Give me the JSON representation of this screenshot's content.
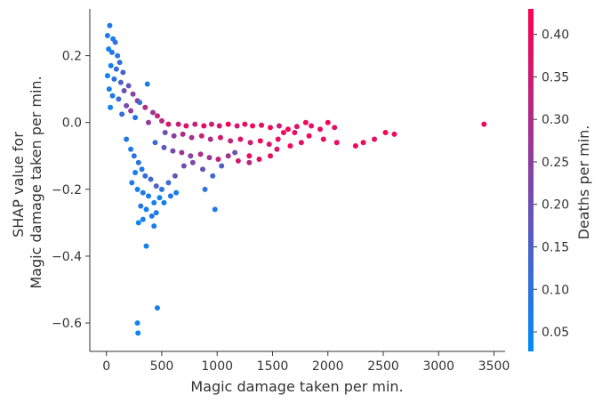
{
  "chart_data": {
    "type": "scatter",
    "title": "",
    "xlabel": "Magic damage taken per min.",
    "ylabel": [
      "SHAP value for",
      "Magic damage taken per min."
    ],
    "xlim": [
      -150,
      3600
    ],
    "ylim": [
      -0.685,
      0.34
    ],
    "xticks": [
      0,
      500,
      1000,
      1500,
      2000,
      2500,
      3000,
      3500
    ],
    "yticks": [
      0.2,
      0.0,
      -0.2,
      -0.4,
      -0.6
    ],
    "ytick_labels": [
      "0.2",
      "0.0",
      "−0.2",
      "−0.4",
      "−0.6"
    ],
    "grid": false,
    "colorbar": {
      "label": "Deaths per min.",
      "range": [
        0.027,
        0.43
      ],
      "ticks": [
        0.05,
        0.1,
        0.15,
        0.2,
        0.25,
        0.3,
        0.35,
        0.4
      ],
      "tick_labels": [
        "0.05",
        "0.10",
        "0.15",
        "0.20",
        "0.25",
        "0.30",
        "0.35",
        "0.40"
      ],
      "colors": [
        "#008bfb",
        "#ff0052"
      ]
    },
    "points": [
      [
        30,
        0.29,
        0.08
      ],
      [
        10,
        0.26,
        0.07
      ],
      [
        60,
        0.25,
        0.06
      ],
      [
        80,
        0.24,
        0.1
      ],
      [
        20,
        0.22,
        0.05
      ],
      [
        50,
        0.21,
        0.08
      ],
      [
        100,
        0.2,
        0.09
      ],
      [
        120,
        0.18,
        0.11
      ],
      [
        40,
        0.17,
        0.06
      ],
      [
        90,
        0.16,
        0.12
      ],
      [
        150,
        0.15,
        0.14
      ],
      [
        10,
        0.14,
        0.05
      ],
      [
        70,
        0.13,
        0.09
      ],
      [
        130,
        0.12,
        0.15
      ],
      [
        200,
        0.11,
        0.18
      ],
      [
        370,
        0.115,
        0.07
      ],
      [
        25,
        0.1,
        0.06
      ],
      [
        160,
        0.095,
        0.2
      ],
      [
        240,
        0.085,
        0.24
      ],
      [
        55,
        0.08,
        0.07
      ],
      [
        110,
        0.07,
        0.12
      ],
      [
        280,
        0.065,
        0.27
      ],
      [
        300,
        0.06,
        0.1
      ],
      [
        180,
        0.05,
        0.22
      ],
      [
        35,
        0.045,
        0.05
      ],
      [
        350,
        0.045,
        0.3
      ],
      [
        220,
        0.035,
        0.26
      ],
      [
        420,
        0.03,
        0.28
      ],
      [
        140,
        0.025,
        0.11
      ],
      [
        460,
        0.02,
        0.33
      ],
      [
        260,
        0.015,
        0.09
      ],
      [
        500,
        0.005,
        0.31
      ],
      [
        380,
        0.0,
        0.25
      ],
      [
        560,
        -0.005,
        0.36
      ],
      [
        650,
        -0.005,
        0.34
      ],
      [
        720,
        -0.01,
        0.38
      ],
      [
        800,
        -0.005,
        0.33
      ],
      [
        880,
        -0.01,
        0.4
      ],
      [
        950,
        -0.005,
        0.35
      ],
      [
        1020,
        -0.01,
        0.37
      ],
      [
        1100,
        -0.005,
        0.42
      ],
      [
        1180,
        -0.01,
        0.36
      ],
      [
        1250,
        -0.005,
        0.39
      ],
      [
        1320,
        -0.01,
        0.41
      ],
      [
        1400,
        -0.008,
        0.38
      ],
      [
        1480,
        -0.015,
        0.4
      ],
      [
        1560,
        -0.01,
        0.35
      ],
      [
        1640,
        -0.02,
        0.42
      ],
      [
        1720,
        -0.012,
        0.37
      ],
      [
        1800,
        0.0,
        0.41
      ],
      [
        1850,
        -0.01,
        0.39
      ],
      [
        1930,
        -0.02,
        0.4
      ],
      [
        2000,
        0.0,
        0.42
      ],
      [
        2060,
        -0.015,
        0.38
      ],
      [
        2250,
        -0.07,
        0.4
      ],
      [
        2320,
        -0.06,
        0.41
      ],
      [
        2420,
        -0.05,
        0.39
      ],
      [
        2520,
        -0.03,
        0.42
      ],
      [
        2600,
        -0.035,
        0.4
      ],
      [
        3410,
        -0.005,
        0.41
      ],
      [
        530,
        -0.03,
        0.2
      ],
      [
        610,
        -0.04,
        0.25
      ],
      [
        690,
        -0.035,
        0.3
      ],
      [
        770,
        -0.045,
        0.28
      ],
      [
        860,
        -0.04,
        0.33
      ],
      [
        940,
        -0.05,
        0.3
      ],
      [
        1030,
        -0.045,
        0.36
      ],
      [
        1120,
        -0.055,
        0.32
      ],
      [
        1210,
        -0.05,
        0.38
      ],
      [
        1300,
        -0.06,
        0.35
      ],
      [
        1390,
        -0.055,
        0.4
      ],
      [
        1470,
        -0.065,
        0.37
      ],
      [
        1550,
        -0.05,
        0.39
      ],
      [
        1660,
        -0.07,
        0.41
      ],
      [
        1760,
        -0.06,
        0.38
      ],
      [
        440,
        -0.06,
        0.12
      ],
      [
        520,
        -0.075,
        0.17
      ],
      [
        600,
        -0.085,
        0.22
      ],
      [
        680,
        -0.09,
        0.27
      ],
      [
        760,
        -0.1,
        0.24
      ],
      [
        850,
        -0.095,
        0.3
      ],
      [
        930,
        -0.105,
        0.26
      ],
      [
        1010,
        -0.11,
        0.33
      ],
      [
        1100,
        -0.1,
        0.29
      ],
      [
        1190,
        -0.115,
        0.36
      ],
      [
        1290,
        -0.12,
        0.32
      ],
      [
        1380,
        -0.11,
        0.38
      ],
      [
        1290,
        -0.1,
        0.4
      ],
      [
        2080,
        -0.06,
        0.4
      ],
      [
        1960,
        -0.05,
        0.39
      ],
      [
        180,
        -0.05,
        0.08
      ],
      [
        220,
        -0.08,
        0.07
      ],
      [
        250,
        -0.1,
        0.1
      ],
      [
        290,
        -0.12,
        0.09
      ],
      [
        320,
        -0.14,
        0.08
      ],
      [
        260,
        -0.15,
        0.06
      ],
      [
        350,
        -0.16,
        0.11
      ],
      [
        230,
        -0.18,
        0.07
      ],
      [
        400,
        -0.17,
        0.13
      ],
      [
        280,
        -0.2,
        0.06
      ],
      [
        450,
        -0.19,
        0.15
      ],
      [
        330,
        -0.21,
        0.08
      ],
      [
        500,
        -0.2,
        0.09
      ],
      [
        560,
        -0.18,
        0.12
      ],
      [
        620,
        -0.16,
        0.18
      ],
      [
        700,
        -0.13,
        0.2
      ],
      [
        780,
        -0.12,
        0.23
      ],
      [
        870,
        -0.14,
        0.19
      ],
      [
        380,
        -0.22,
        0.07
      ],
      [
        430,
        -0.24,
        0.06
      ],
      [
        480,
        -0.225,
        0.05
      ],
      [
        310,
        -0.25,
        0.09
      ],
      [
        360,
        -0.26,
        0.06
      ],
      [
        410,
        -0.28,
        0.08
      ],
      [
        450,
        -0.27,
        0.07
      ],
      [
        290,
        -0.3,
        0.05
      ],
      [
        330,
        -0.29,
        0.06
      ],
      [
        430,
        -0.31,
        0.07
      ],
      [
        520,
        -0.24,
        0.06
      ],
      [
        580,
        -0.22,
        0.08
      ],
      [
        630,
        -0.21,
        0.06
      ],
      [
        980,
        -0.26,
        0.07
      ],
      [
        360,
        -0.37,
        0.06
      ],
      [
        280,
        -0.6,
        0.05
      ],
      [
        285,
        -0.63,
        0.05
      ],
      [
        460,
        -0.555,
        0.06
      ],
      [
        960,
        -0.16,
        0.12
      ],
      [
        1040,
        -0.13,
        0.16
      ],
      [
        1160,
        -0.09,
        0.2
      ],
      [
        890,
        -0.2,
        0.1
      ],
      [
        1480,
        -0.1,
        0.39
      ],
      [
        1540,
        -0.08,
        0.36
      ],
      [
        1600,
        -0.03,
        0.4
      ],
      [
        1700,
        -0.03,
        0.39
      ],
      [
        1830,
        -0.04,
        0.41
      ]
    ]
  }
}
